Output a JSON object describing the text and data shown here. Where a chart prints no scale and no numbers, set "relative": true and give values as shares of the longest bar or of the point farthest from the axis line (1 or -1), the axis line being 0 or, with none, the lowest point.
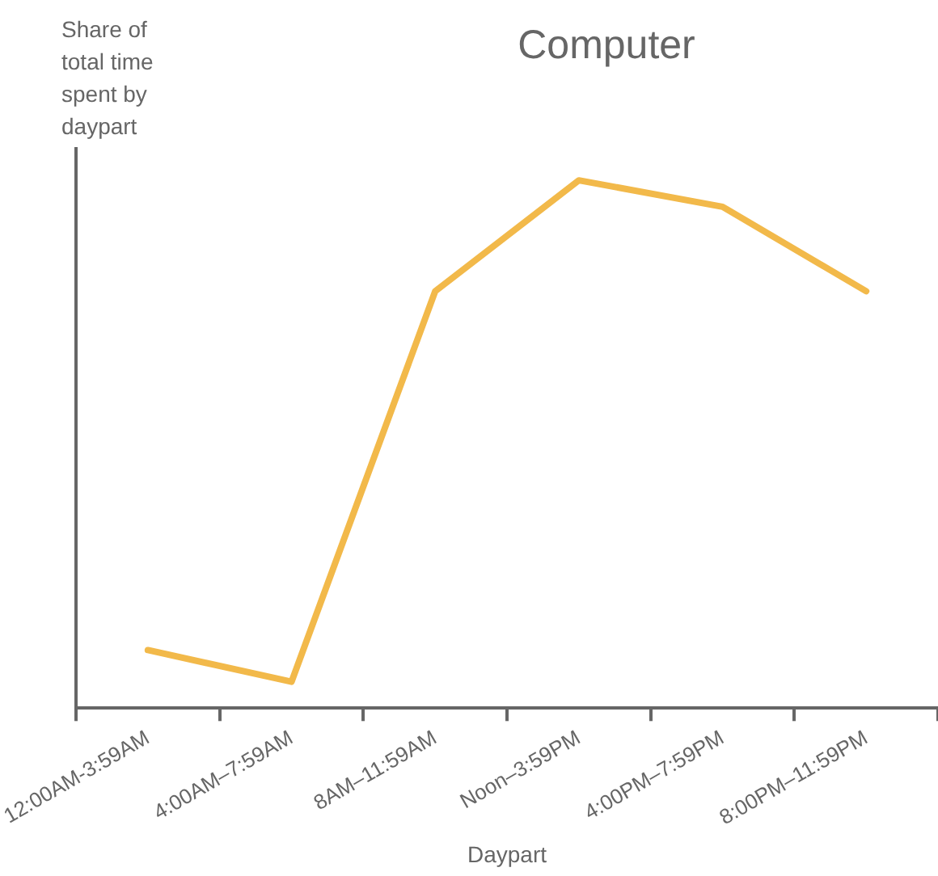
{
  "chart_data": {
    "type": "line",
    "title": "Computer",
    "xlabel": "Daypart",
    "ylabel": "Share of total time spent by daypart",
    "categories": [
      "12:00AM-3:59AM",
      "4:00AM–7:59AM",
      "8AM–11:59AM",
      "Noon–3:59PM",
      "4:00PM–7:59PM",
      "8:00PM–11:59PM"
    ],
    "series": [
      {
        "color": "#f2b94a",
        "values": [
          0.11,
          0.05,
          0.79,
          1,
          0.95,
          0.79
        ]
      }
    ],
    "relative": true,
    "grid": false,
    "legend": false,
    "marker": "none",
    "line_style": "solid"
  }
}
